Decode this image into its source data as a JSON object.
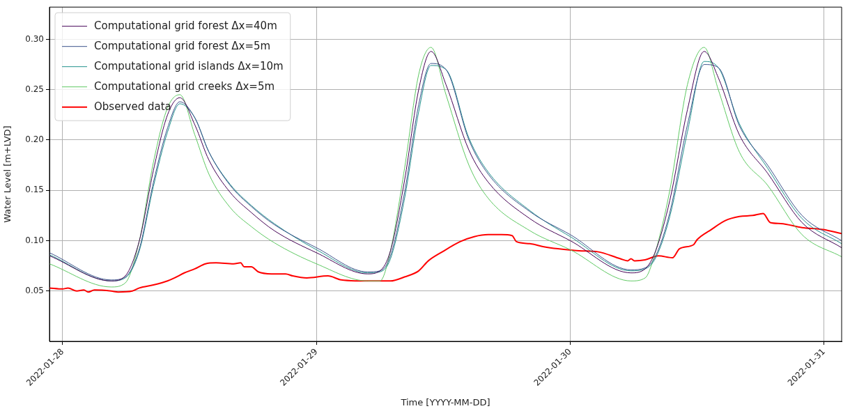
{
  "chart_data": {
    "type": "line",
    "xlabel": "Time [YYYY-MM-DD]",
    "ylabel": "Water Level [m+LVD]",
    "x": [
      "2022-01-27T22:45",
      "2022-01-28T04:35",
      "2022-01-28T05:55",
      "2022-01-28T07:15",
      "2022-01-28T08:35",
      "2022-01-28T09:55",
      "2022-01-28T11:05",
      "2022-01-28T12:30",
      "2022-01-28T13:50",
      "2022-01-28T15:50",
      "2022-01-28T17:50",
      "2022-01-28T20:00",
      "2022-01-29T00:00",
      "2022-01-29T04:50",
      "2022-01-29T06:00",
      "2022-01-29T07:00",
      "2022-01-29T08:20",
      "2022-01-29T09:40",
      "2022-01-29T10:50",
      "2022-01-29T12:15",
      "2022-01-29T14:25",
      "2022-01-29T16:15",
      "2022-01-29T20:10",
      "2022-01-30T00:00",
      "2022-01-30T05:45",
      "2022-01-30T07:05",
      "2022-01-30T08:05",
      "2022-01-30T09:25",
      "2022-01-30T11:05",
      "2022-01-30T12:40",
      "2022-01-30T14:00",
      "2022-01-30T16:00",
      "2022-01-30T18:40",
      "2022-01-30T21:55",
      "2022-01-31T01:40"
    ],
    "series": [
      {
        "name": "Computational grid forest Δx=40m",
        "color": "#440154",
        "values": [
          0.085,
          0.06,
          0.065,
          0.1,
          0.17,
          0.225,
          0.242,
          0.215,
          0.18,
          0.148,
          0.128,
          0.11,
          0.088,
          0.067,
          0.07,
          0.09,
          0.16,
          0.25,
          0.288,
          0.255,
          0.19,
          0.158,
          0.122,
          0.1,
          0.068,
          0.072,
          0.09,
          0.14,
          0.23,
          0.288,
          0.262,
          0.205,
          0.167,
          0.118,
          0.093
        ]
      },
      {
        "name": "Computational grid forest Δx=5m",
        "color": "#3b528b",
        "values": [
          0.088,
          0.061,
          0.064,
          0.092,
          0.158,
          0.212,
          0.238,
          0.222,
          0.188,
          0.155,
          0.134,
          0.116,
          0.093,
          0.069,
          0.07,
          0.085,
          0.148,
          0.235,
          0.276,
          0.27,
          0.2,
          0.166,
          0.129,
          0.106,
          0.071,
          0.073,
          0.085,
          0.128,
          0.215,
          0.275,
          0.272,
          0.214,
          0.175,
          0.125,
          0.1
        ]
      },
      {
        "name": "Computational grid islands Δx=10m",
        "color": "#21918c",
        "values": [
          0.086,
          0.06,
          0.063,
          0.09,
          0.154,
          0.208,
          0.236,
          0.222,
          0.188,
          0.156,
          0.135,
          0.117,
          0.091,
          0.068,
          0.069,
          0.082,
          0.142,
          0.228,
          0.274,
          0.27,
          0.202,
          0.168,
          0.13,
          0.104,
          0.07,
          0.072,
          0.083,
          0.124,
          0.208,
          0.278,
          0.272,
          0.216,
          0.172,
          0.122,
          0.097
        ]
      },
      {
        "name": "Computational grid creeks Δx=5m",
        "color": "#5ec962",
        "values": [
          0.077,
          0.054,
          0.058,
          0.1,
          0.178,
          0.232,
          0.245,
          0.205,
          0.166,
          0.133,
          0.114,
          0.098,
          0.077,
          0.06,
          0.06,
          0.09,
          0.172,
          0.265,
          0.292,
          0.245,
          0.175,
          0.142,
          0.11,
          0.091,
          0.06,
          0.063,
          0.09,
          0.15,
          0.255,
          0.292,
          0.25,
          0.188,
          0.155,
          0.106,
          0.084
        ]
      },
      {
        "name": "Observed data",
        "color": "#ff0000",
        "x": [
          "2022-01-27T22:45",
          "2022-01-28T00:00",
          "2022-01-28T00:30",
          "2022-01-28T01:20",
          "2022-01-28T02:00",
          "2022-01-28T02:25",
          "2022-01-28T03:00",
          "2022-01-28T04:35",
          "2022-01-28T05:15",
          "2022-01-28T06:35",
          "2022-01-28T07:15",
          "2022-01-28T08:35",
          "2022-01-28T09:55",
          "2022-01-28T10:35",
          "2022-01-28T11:30",
          "2022-01-28T12:30",
          "2022-01-28T13:30",
          "2022-01-28T14:30",
          "2022-01-28T16:10",
          "2022-01-28T16:50",
          "2022-01-28T17:10",
          "2022-01-28T17:50",
          "2022-01-28T18:30",
          "2022-01-28T19:45",
          "2022-01-28T21:05",
          "2022-01-28T21:45",
          "2022-01-28T23:05",
          "2022-01-29T01:05",
          "2022-01-29T02:20",
          "2022-01-29T04:20",
          "2022-01-29T07:00",
          "2022-01-29T08:20",
          "2022-01-29T09:40",
          "2022-01-29T10:35",
          "2022-01-29T11:55",
          "2022-01-29T13:35",
          "2022-01-29T14:55",
          "2022-01-29T16:15",
          "2022-01-29T17:30",
          "2022-01-29T18:30",
          "2022-01-29T18:55",
          "2022-01-29T20:10",
          "2022-01-29T21:30",
          "2022-01-29T22:50",
          "2022-01-30T00:50",
          "2022-01-30T02:35",
          "2022-01-30T04:45",
          "2022-01-30T05:25",
          "2022-01-30T05:45",
          "2022-01-30T06:05",
          "2022-01-30T07:05",
          "2022-01-30T08:20",
          "2022-01-30T09:40",
          "2022-01-30T10:20",
          "2022-01-30T11:40",
          "2022-01-30T12:00",
          "2022-01-30T13:20",
          "2022-01-30T14:40",
          "2022-01-30T16:00",
          "2022-01-30T17:15",
          "2022-01-30T18:15",
          "2022-01-30T18:55",
          "2022-01-30T19:55",
          "2022-01-30T21:55",
          "2022-01-30T23:55",
          "2022-01-31T01:40"
        ],
        "values": [
          0.053,
          0.052,
          0.053,
          0.05,
          0.051,
          0.049,
          0.051,
          0.05,
          0.049,
          0.05,
          0.053,
          0.056,
          0.06,
          0.063,
          0.068,
          0.072,
          0.077,
          0.078,
          0.077,
          0.078,
          0.074,
          0.074,
          0.069,
          0.067,
          0.067,
          0.065,
          0.063,
          0.065,
          0.061,
          0.06,
          0.06,
          0.064,
          0.07,
          0.08,
          0.089,
          0.099,
          0.104,
          0.106,
          0.106,
          0.105,
          0.099,
          0.097,
          0.094,
          0.092,
          0.09,
          0.089,
          0.082,
          0.08,
          0.082,
          0.08,
          0.081,
          0.085,
          0.083,
          0.092,
          0.096,
          0.101,
          0.111,
          0.12,
          0.124,
          0.125,
          0.127,
          0.118,
          0.117,
          0.113,
          0.111,
          0.107
        ]
      }
    ],
    "xlim": [
      "2022-01-27T22:45",
      "2022-01-31T01:40"
    ],
    "xticks": [
      "2022-01-28",
      "2022-01-29",
      "2022-01-30",
      "2022-01-31"
    ],
    "ylim": [
      0,
      0.332
    ],
    "yticks": [
      0.05,
      {
        "value": 0.1,
        "label": "0.10"
      },
      0.15,
      {
        "value": 0.2,
        "label": "0.20"
      },
      0.25,
      {
        "value": 0.3,
        "label": "0.30"
      }
    ],
    "grid": true,
    "legend": "top left",
    "marker": "none",
    "line_style": "solid"
  }
}
